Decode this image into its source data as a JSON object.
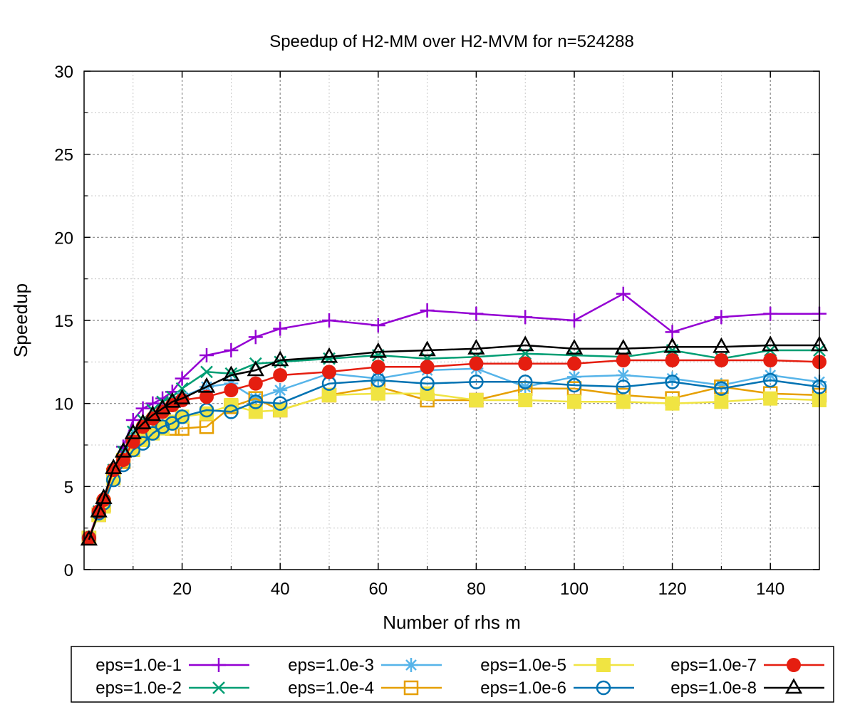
{
  "chart_data": {
    "type": "line",
    "title": "Speedup of H2-MM over H2-MVM for n=524288",
    "xlabel": "Number of rhs m",
    "ylabel": "Speedup",
    "xlim": [
      0,
      150
    ],
    "ylim": [
      0,
      30
    ],
    "xticks": [
      20,
      40,
      60,
      80,
      100,
      120,
      140
    ],
    "yticks": [
      0,
      5,
      10,
      15,
      20,
      25,
      30
    ],
    "grid": true,
    "legend_position": "bottom",
    "x": [
      1,
      3,
      4,
      6,
      8,
      10,
      12,
      14,
      16,
      18,
      20,
      25,
      30,
      35,
      40,
      50,
      60,
      70,
      80,
      90,
      100,
      110,
      120,
      130,
      140,
      150
    ],
    "series": [
      {
        "name": "eps=1.0e-1",
        "color": "#9400d3",
        "marker": "plus",
        "values": [
          1.9,
          3.6,
          4.2,
          6.0,
          7.4,
          9.0,
          9.7,
          10.0,
          10.3,
          10.7,
          11.5,
          12.9,
          13.2,
          14.0,
          14.5,
          15.0,
          14.7,
          15.6,
          15.4,
          15.2,
          15.0,
          16.6,
          14.3,
          15.2,
          15.4,
          15.4
        ]
      },
      {
        "name": "eps=1.0e-2",
        "color": "#009e73",
        "marker": "x",
        "values": [
          1.9,
          3.5,
          4.1,
          6.0,
          7.1,
          8.3,
          9.0,
          9.6,
          10.1,
          10.4,
          10.9,
          11.9,
          11.8,
          12.4,
          12.5,
          12.7,
          12.9,
          12.7,
          12.8,
          13.0,
          12.9,
          12.8,
          13.2,
          12.7,
          13.2,
          13.2
        ]
      },
      {
        "name": "eps=1.0e-3",
        "color": "#56b4e9",
        "marker": "asterisk",
        "values": [
          1.9,
          3.5,
          4.0,
          5.8,
          6.8,
          8.0,
          8.6,
          9.0,
          9.5,
          9.9,
          10.4,
          11.0,
          11.2,
          10.3,
          10.8,
          11.8,
          11.5,
          12.0,
          12.1,
          11.0,
          11.6,
          11.7,
          11.5,
          11.1,
          11.7,
          11.3
        ]
      },
      {
        "name": "eps=1.0e-4",
        "color": "#e69f00",
        "marker": "square-open",
        "values": [
          1.9,
          3.3,
          3.9,
          5.7,
          6.5,
          7.5,
          8.2,
          8.6,
          9.0,
          8.5,
          8.5,
          8.6,
          9.8,
          10.3,
          9.6,
          10.5,
          11.0,
          10.2,
          10.2,
          10.9,
          10.9,
          10.5,
          10.3,
          11.0,
          10.6,
          10.5
        ]
      },
      {
        "name": "eps=1.0e-5",
        "color": "#f0e442",
        "marker": "square-filled",
        "values": [
          1.9,
          3.3,
          3.8,
          5.5,
          6.6,
          7.2,
          7.8,
          8.2,
          8.5,
          8.9,
          9.2,
          9.4,
          9.9,
          9.5,
          9.6,
          10.5,
          10.6,
          10.6,
          10.2,
          10.2,
          10.1,
          10.1,
          10.0,
          10.1,
          10.3,
          10.2
        ]
      },
      {
        "name": "eps=1.0e-6",
        "color": "#0072b2",
        "marker": "circle-open",
        "values": [
          1.9,
          3.4,
          4.0,
          5.4,
          6.3,
          7.2,
          7.6,
          8.2,
          8.6,
          8.8,
          9.2,
          9.6,
          9.5,
          10.1,
          10.0,
          11.2,
          11.4,
          11.2,
          11.3,
          11.3,
          11.1,
          11.0,
          11.3,
          10.9,
          11.4,
          11.0
        ]
      },
      {
        "name": "eps=1.0e-7",
        "color": "#e51e10",
        "marker": "circle-filled",
        "values": [
          1.9,
          3.5,
          4.2,
          6.0,
          6.6,
          7.7,
          8.6,
          9.1,
          9.5,
          9.9,
          10.2,
          10.4,
          10.8,
          11.2,
          11.7,
          11.9,
          12.2,
          12.2,
          12.4,
          12.4,
          12.4,
          12.6,
          12.6,
          12.6,
          12.6,
          12.5
        ]
      },
      {
        "name": "eps=1.0e-8",
        "color": "#000000",
        "marker": "triangle-open",
        "values": [
          1.8,
          3.5,
          4.3,
          6.1,
          7.1,
          8.2,
          8.8,
          9.3,
          9.7,
          10.1,
          10.3,
          11.0,
          11.7,
          12.0,
          12.6,
          12.8,
          13.1,
          13.2,
          13.3,
          13.5,
          13.3,
          13.3,
          13.4,
          13.4,
          13.5,
          13.5
        ]
      }
    ]
  }
}
